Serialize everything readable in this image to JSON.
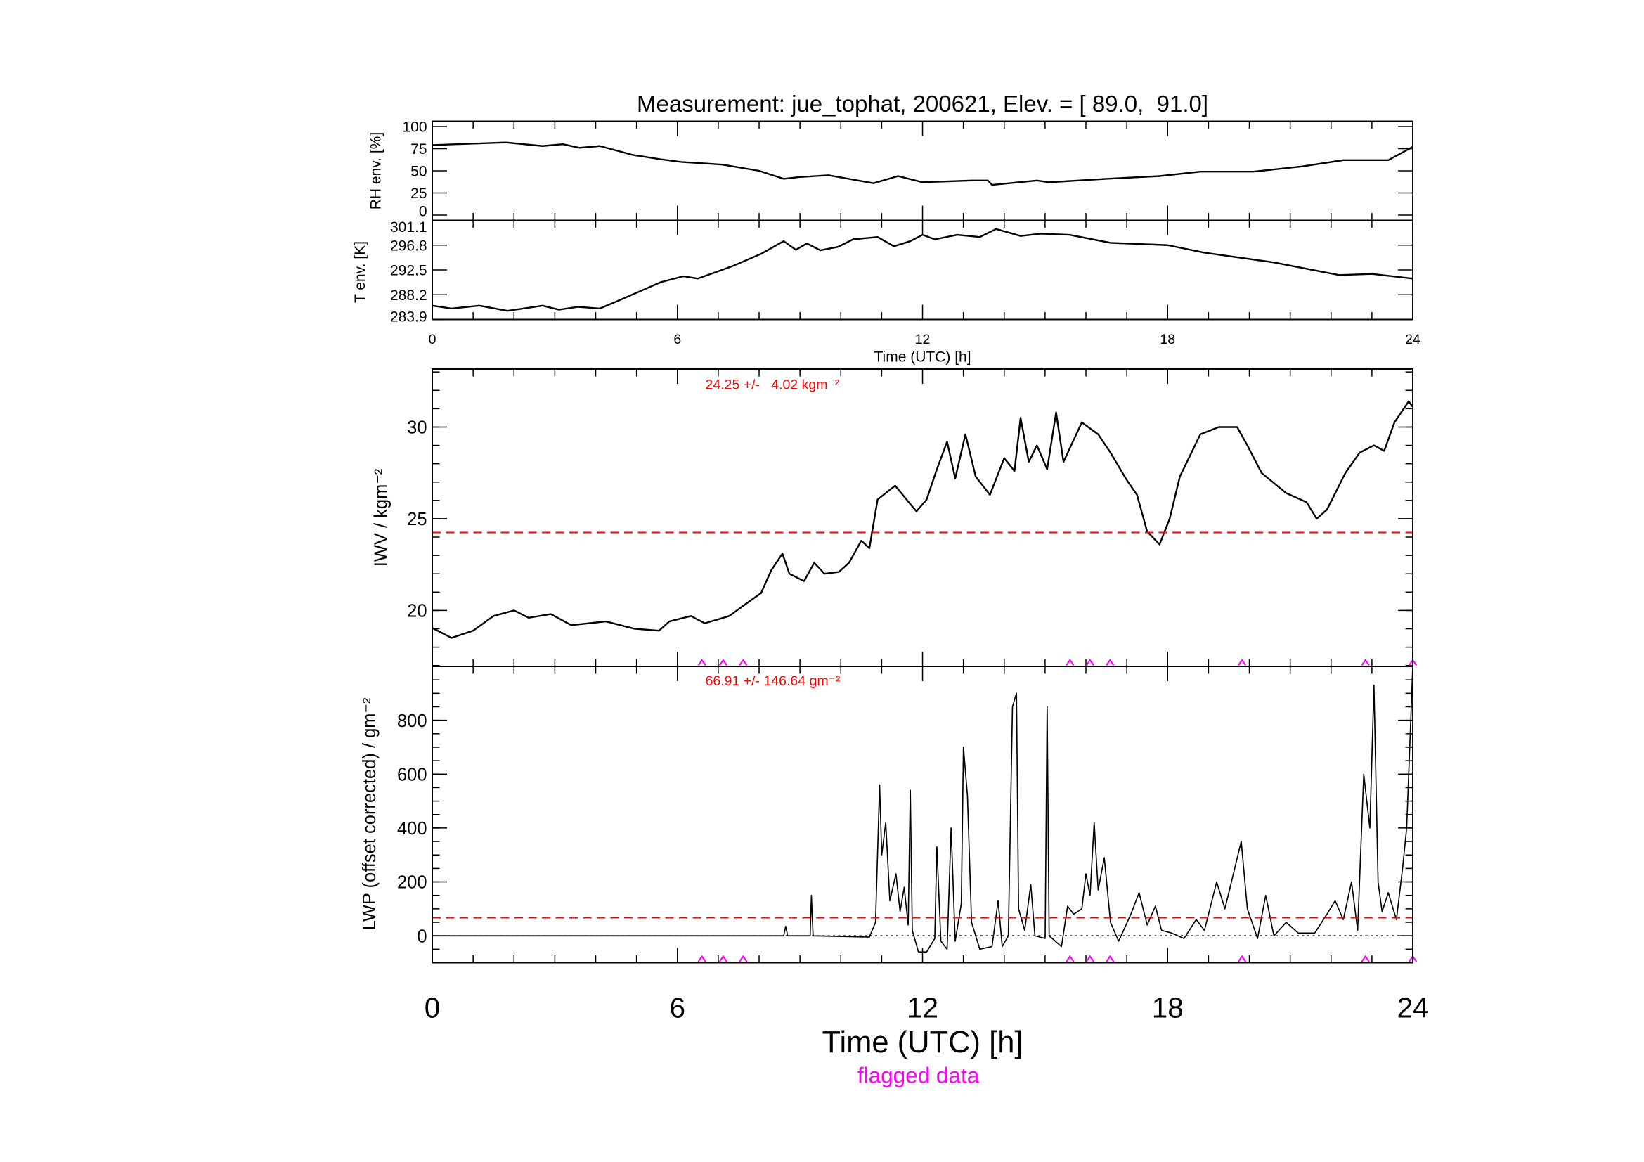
{
  "chart_data": [
    {
      "type": "line",
      "title": "Measurement: jue_tophat, 200621, Elev. = [ 89.0,  91.0]",
      "ylabel": "RH env. [%]",
      "xlim": [
        0,
        24
      ],
      "ylim": [
        0,
        100
      ],
      "yticks": [
        "100",
        "75",
        "50",
        "25",
        "0"
      ],
      "ytick_values": [
        100,
        75,
        50,
        25,
        0
      ],
      "x": [
        0,
        1.8,
        2.7,
        3.2,
        3.6,
        4.1,
        4.9,
        5.6,
        6.1,
        7.1,
        8.0,
        8.6,
        9.0,
        9.7,
        10.8,
        11.4,
        12.0,
        13.2,
        13.6,
        13.7,
        14.8,
        15.1,
        16.5,
        17.8,
        18.8,
        20.1,
        21.3,
        22.3,
        23.4,
        24.0
      ],
      "y": [
        79,
        82,
        78,
        80,
        76,
        78,
        68,
        63,
        60,
        57,
        50,
        41,
        43,
        45,
        36,
        44,
        37,
        39,
        39,
        34,
        39,
        37,
        41,
        44,
        49,
        49,
        55,
        62,
        62,
        77
      ]
    },
    {
      "type": "line",
      "ylabel": "T env. [K]",
      "xlabel": "Time (UTC) [h]",
      "xlim": [
        0,
        24
      ],
      "ylim": [
        283.9,
        301.1
      ],
      "xticks": [
        "0",
        "6",
        "12",
        "18",
        "24"
      ],
      "yticks": [
        "301.1",
        "296.8",
        "292.5",
        "288.2",
        "283.9"
      ],
      "ytick_values": [
        301.1,
        296.8,
        292.5,
        288.2,
        283.9
      ],
      "x": [
        0,
        0.47,
        1.15,
        1.84,
        2.7,
        3.1,
        3.57,
        4.1,
        4.6,
        5.6,
        6.15,
        6.5,
        7.36,
        8.05,
        8.6,
        8.9,
        9.17,
        9.5,
        9.93,
        10.3,
        10.9,
        11.3,
        11.7,
        12.0,
        12.3,
        12.85,
        13.4,
        13.8,
        14.4,
        14.9,
        15.6,
        16.6,
        18.0,
        18.9,
        20.6,
        22.2,
        23.0,
        24.0
      ],
      "y": [
        286.3,
        285.8,
        286.3,
        285.4,
        286.3,
        285.6,
        286.1,
        285.8,
        287.3,
        290.4,
        291.4,
        291.0,
        293.2,
        295.3,
        297.5,
        296.0,
        297.1,
        295.9,
        296.5,
        297.8,
        298.2,
        296.6,
        297.5,
        298.6,
        297.8,
        298.6,
        298.2,
        299.6,
        298.4,
        298.8,
        298.6,
        297.2,
        296.8,
        295.5,
        293.8,
        291.6,
        291.8,
        291.0
      ]
    },
    {
      "type": "line",
      "ylabel": "IWV / kgm⁻²",
      "xlim": [
        0,
        24
      ],
      "ylim": [
        16.95,
        33.16
      ],
      "yticks": [
        "30",
        "25",
        "20"
      ],
      "ytick_values": [
        30,
        25,
        20
      ],
      "mean": 24.25,
      "annotation": "24.25 +/-   4.02 kgm⁻²",
      "x": [
        0,
        0.47,
        1,
        1.5,
        2,
        2.36,
        2.9,
        3.4,
        4.25,
        4.95,
        5.55,
        5.8,
        6.33,
        6.67,
        7.27,
        7.7,
        8.05,
        8.3,
        8.57,
        8.74,
        9.1,
        9.35,
        9.6,
        9.95,
        10.2,
        10.5,
        10.7,
        10.9,
        11.33,
        11.85,
        12.1,
        12.35,
        12.6,
        12.8,
        13.05,
        13.3,
        13.65,
        14.0,
        14.25,
        14.4,
        14.6,
        14.8,
        15.05,
        15.27,
        15.45,
        15.9,
        16.3,
        16.6,
        17.0,
        17.25,
        17.5,
        17.8,
        18.05,
        18.3,
        18.8,
        19.25,
        19.7,
        19.95,
        20.3,
        20.9,
        21.4,
        21.65,
        21.9,
        22.35,
        22.7,
        23.05,
        23.3,
        23.55,
        23.9,
        24.0
      ],
      "y": [
        19.05,
        18.5,
        18.9,
        19.7,
        20.0,
        19.6,
        19.8,
        19.2,
        19.4,
        19.0,
        18.9,
        19.4,
        19.7,
        19.3,
        19.7,
        20.4,
        20.95,
        22.2,
        23.1,
        22.0,
        21.6,
        22.6,
        22.0,
        22.1,
        22.6,
        23.8,
        23.4,
        26.05,
        26.8,
        25.4,
        26.05,
        27.7,
        29.2,
        27.2,
        29.6,
        27.3,
        26.3,
        28.3,
        27.6,
        30.5,
        28.1,
        29.0,
        27.7,
        30.8,
        28.1,
        30.25,
        29.6,
        28.6,
        27.1,
        26.3,
        24.3,
        23.6,
        25.0,
        27.3,
        29.6,
        30.0,
        30.0,
        29.0,
        27.5,
        26.4,
        25.9,
        25.0,
        25.5,
        27.5,
        28.6,
        29.0,
        28.7,
        30.25,
        31.4,
        31.1
      ]
    },
    {
      "type": "line",
      "ylabel": "LWP (offset corrected) / gm⁻²",
      "xlabel": "Time (UTC) [h]",
      "xlim": [
        0,
        24
      ],
      "ylim": [
        -100,
        1000
      ],
      "xticks": [
        "0",
        "6",
        "12",
        "18",
        "24"
      ],
      "yticks": [
        "800",
        "600",
        "400",
        "200",
        "0"
      ],
      "ytick_values": [
        800,
        600,
        400,
        200,
        0
      ],
      "mean": 66.91,
      "annotation": "66.91 +/- 146.64 gm⁻²",
      "x": [
        0,
        8.6,
        8.65,
        8.7,
        9.25,
        9.28,
        9.32,
        10.7,
        10.85,
        10.95,
        11.0,
        11.1,
        11.2,
        11.35,
        11.45,
        11.55,
        11.65,
        11.7,
        11.75,
        11.9,
        12.1,
        12.3,
        12.35,
        12.45,
        12.6,
        12.7,
        12.8,
        12.95,
        13.0,
        13.1,
        13.2,
        13.4,
        13.7,
        13.85,
        13.95,
        14.1,
        14.2,
        14.3,
        14.35,
        14.5,
        14.65,
        14.75,
        15.0,
        15.05,
        15.1,
        15.4,
        15.55,
        15.7,
        15.9,
        16.0,
        16.1,
        16.2,
        16.3,
        16.45,
        16.6,
        16.8,
        17.1,
        17.3,
        17.5,
        17.7,
        17.85,
        18.1,
        18.4,
        18.7,
        18.9,
        19.2,
        19.4,
        19.8,
        19.95,
        20.2,
        20.4,
        20.6,
        20.9,
        21.2,
        21.6,
        21.9,
        22.1,
        22.3,
        22.5,
        22.65,
        22.8,
        22.95,
        23.05,
        23.15,
        23.25,
        23.4,
        23.5,
        23.6,
        23.75,
        23.85,
        23.95,
        24.0
      ],
      "y": [
        0,
        0,
        35,
        0,
        0,
        150,
        0,
        -5,
        50,
        560,
        300,
        420,
        130,
        230,
        90,
        180,
        40,
        540,
        20,
        -60,
        -60,
        -10,
        330,
        -20,
        -50,
        400,
        -20,
        120,
        700,
        520,
        50,
        -50,
        -40,
        130,
        -40,
        0,
        850,
        900,
        100,
        20,
        190,
        0,
        -10,
        850,
        0,
        -40,
        110,
        80,
        100,
        230,
        150,
        420,
        170,
        290,
        50,
        -20,
        80,
        160,
        40,
        110,
        20,
        10,
        -10,
        60,
        20,
        200,
        100,
        350,
        100,
        -10,
        150,
        0,
        50,
        10,
        10,
        80,
        130,
        60,
        200,
        20,
        600,
        400,
        930,
        200,
        90,
        160,
        110,
        60,
        250,
        400,
        800,
        1000
      ]
    }
  ],
  "flags": {
    "label": "flagged data",
    "hours": [
      6.6,
      7.12,
      7.61,
      15.61,
      16.1,
      16.59,
      19.82,
      22.84,
      24.0
    ],
    "color": "#ff00ff"
  },
  "colors": {
    "mean_line": "#ff0000",
    "series": "#000000",
    "flag": "#ff00ff"
  }
}
